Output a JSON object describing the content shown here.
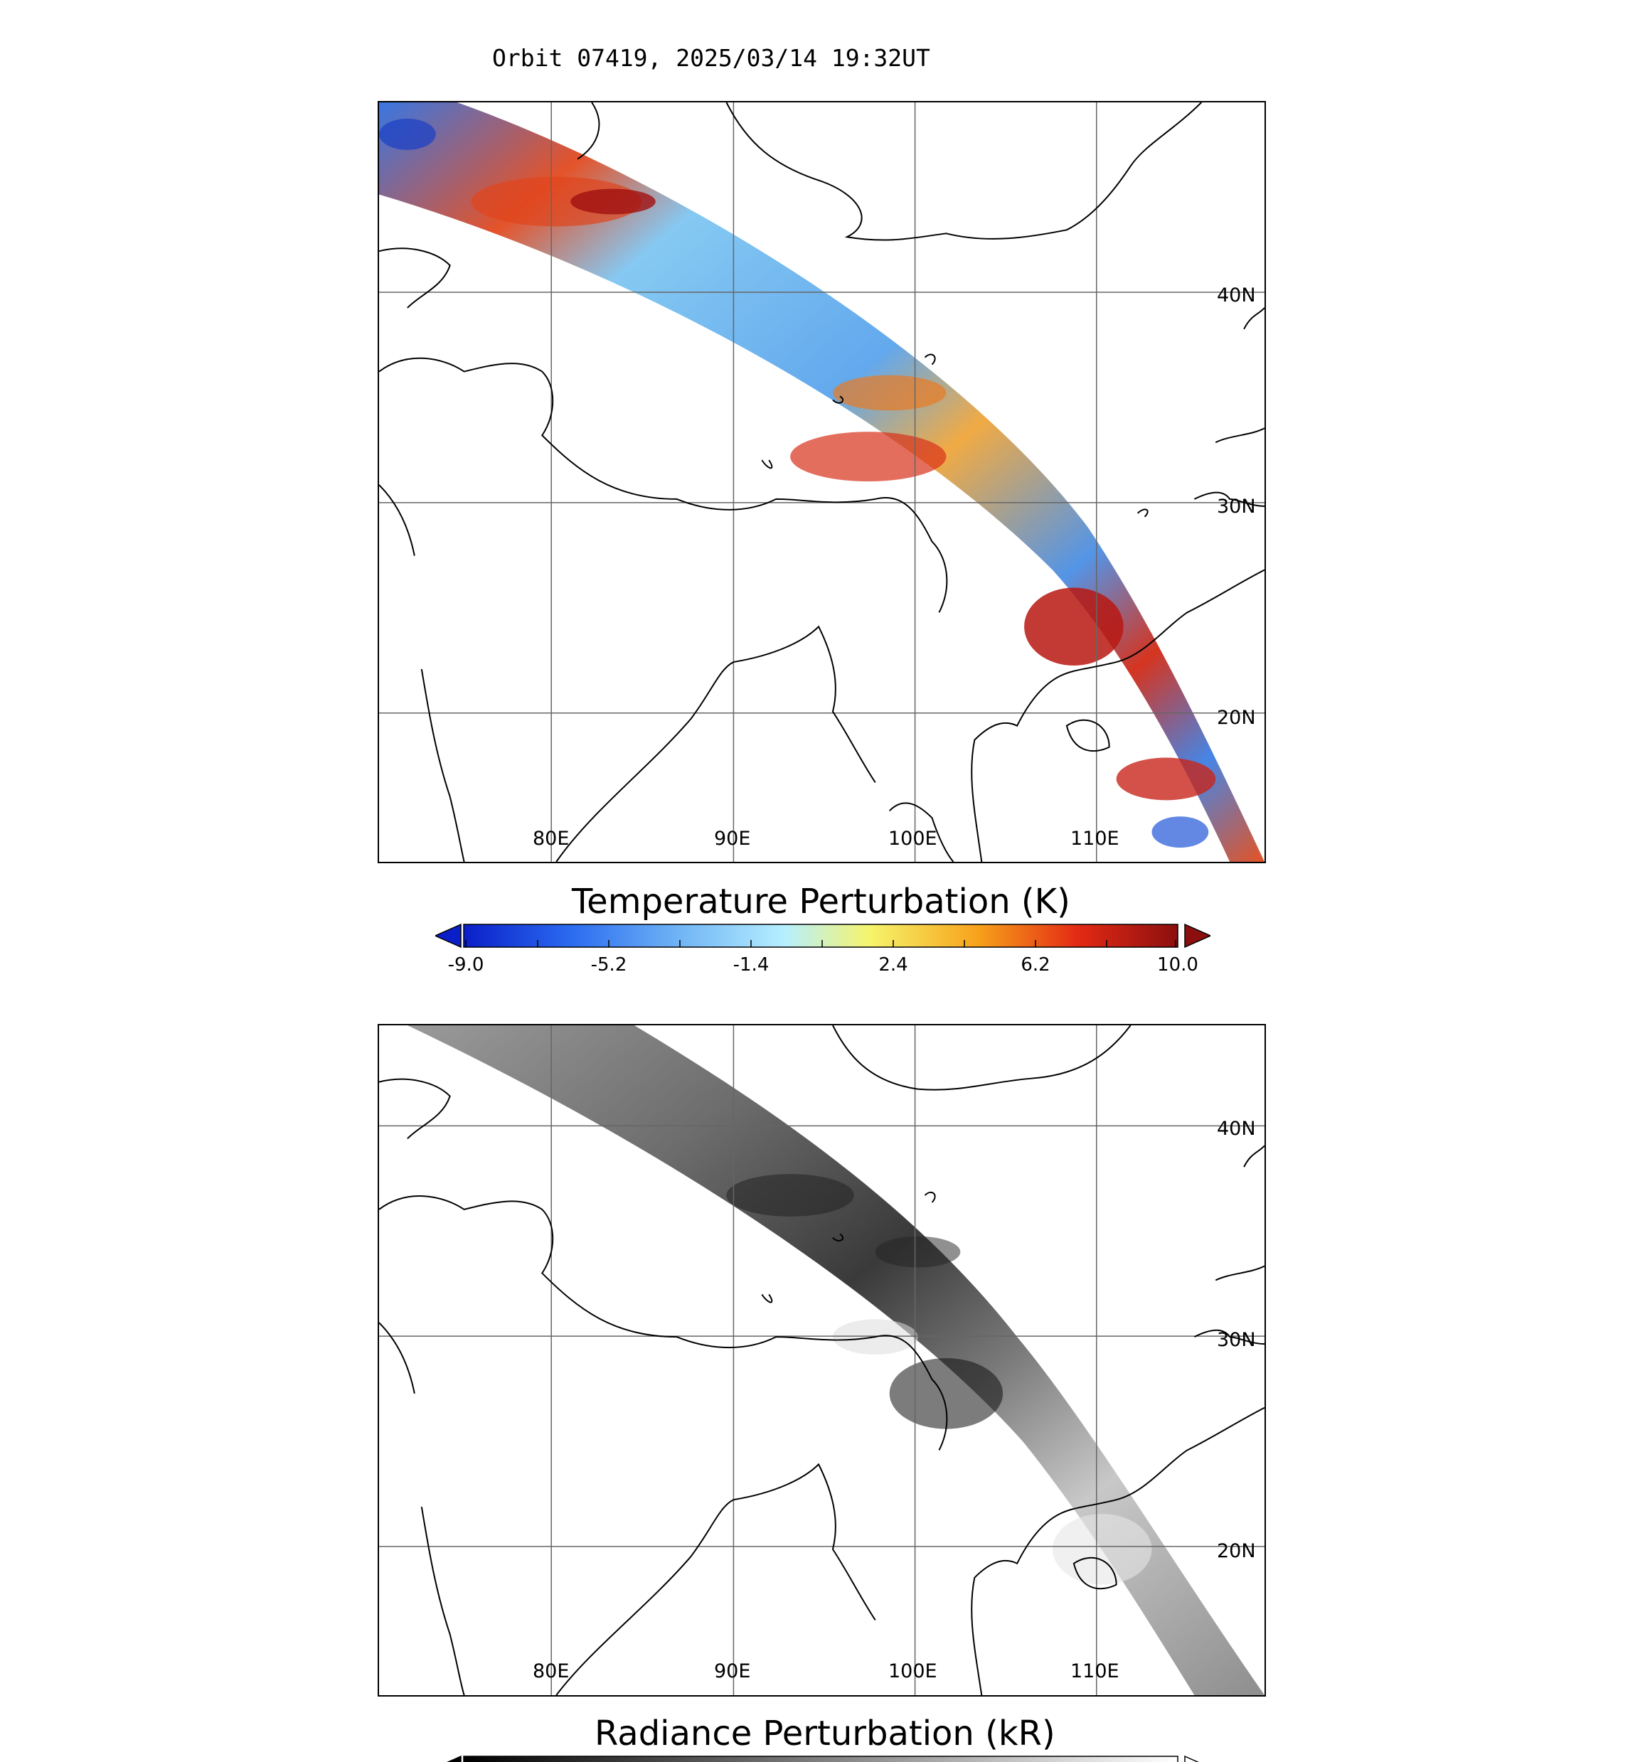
{
  "title": "Orbit 07419, 2025/03/14 19:32UT",
  "panel_top": {
    "lat_labels": [
      "40N",
      "30N",
      "20N"
    ],
    "lon_labels": [
      "80E",
      "90E",
      "100E",
      "110E"
    ],
    "colorbar": {
      "title": "Temperature Perturbation (K)",
      "ticks": [
        "-9.0",
        "-5.2",
        "-1.4",
        "2.4",
        "6.2",
        "10.0"
      ],
      "colors": [
        "#0a1fc8",
        "#2b6bf0",
        "#6fb4f5",
        "#b7efff",
        "#f6f46a",
        "#f7a21b",
        "#e32a14",
        "#8c0f0f"
      ]
    }
  },
  "panel_bottom": {
    "lat_labels": [
      "40N",
      "30N",
      "20N"
    ],
    "lon_labels": [
      "80E",
      "90E",
      "100E",
      "110E"
    ],
    "colorbar": {
      "title": "Radiance Perturbation (kR)"
    }
  }
}
